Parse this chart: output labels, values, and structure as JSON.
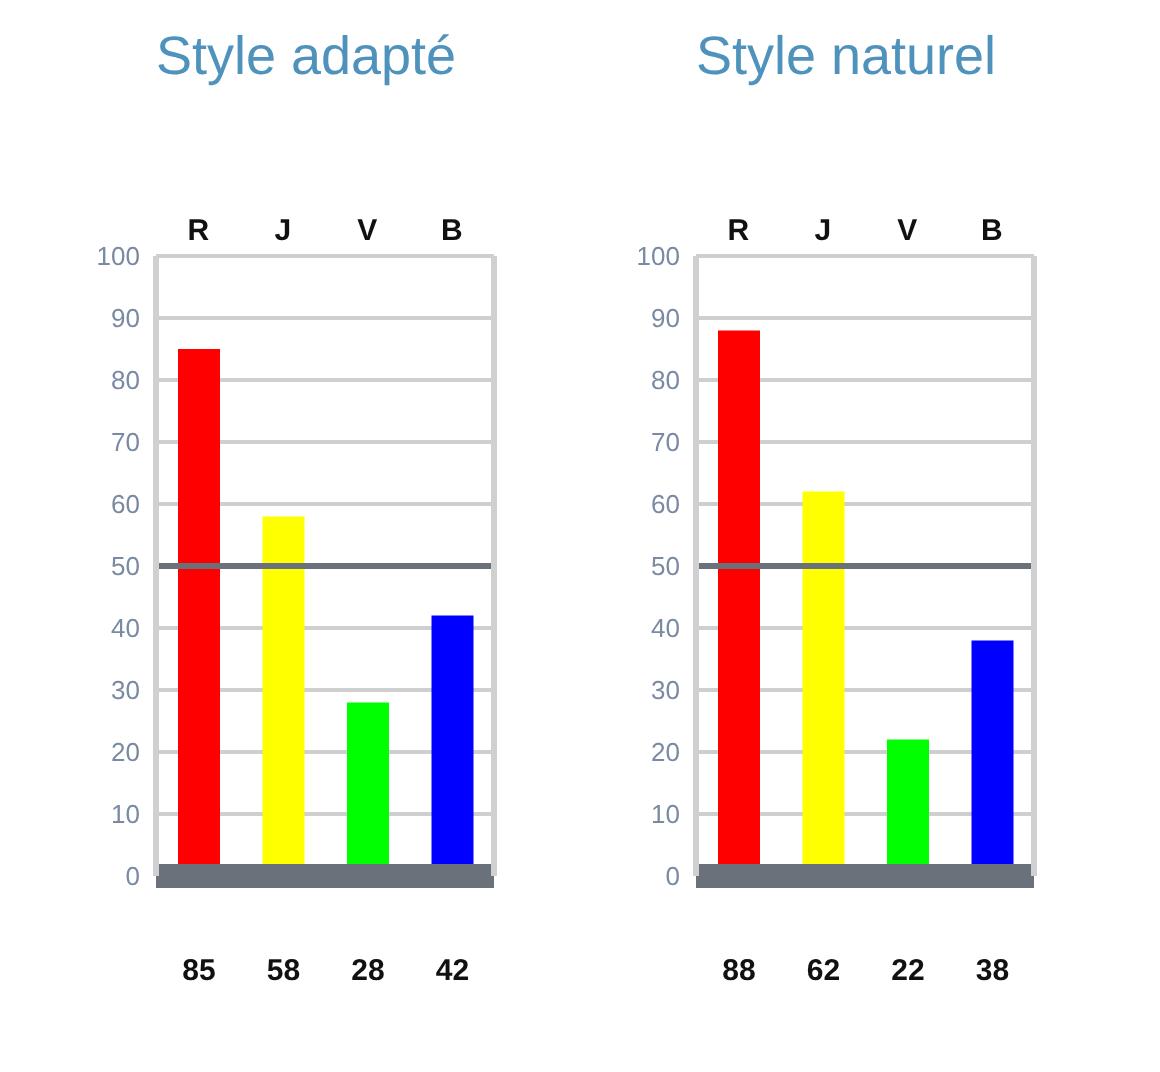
{
  "chart_data": [
    {
      "type": "bar",
      "title": "Style adapté",
      "categories": [
        "R",
        "J",
        "V",
        "B"
      ],
      "values": [
        85,
        58,
        28,
        42
      ],
      "colors": [
        "#ff0000",
        "#ffff00",
        "#00ff00",
        "#0000ff"
      ],
      "ylim": [
        0,
        100
      ],
      "yticks": [
        0,
        10,
        20,
        30,
        40,
        50,
        60,
        70,
        80,
        90,
        100
      ],
      "grid": "y",
      "ref_lines": [
        {
          "axis": "y",
          "value": 50,
          "color": "#6b717b"
        }
      ],
      "data_labels": true
    },
    {
      "type": "bar",
      "title": "Style naturel",
      "categories": [
        "R",
        "J",
        "V",
        "B"
      ],
      "values": [
        88,
        62,
        22,
        38
      ],
      "colors": [
        "#ff0000",
        "#ffff00",
        "#00ff00",
        "#0000ff"
      ],
      "ylim": [
        0,
        100
      ],
      "yticks": [
        0,
        10,
        20,
        30,
        40,
        50,
        60,
        70,
        80,
        90,
        100
      ],
      "grid": "y",
      "ref_lines": [
        {
          "axis": "y",
          "value": 50,
          "color": "#6b717b"
        }
      ],
      "data_labels": true
    }
  ]
}
